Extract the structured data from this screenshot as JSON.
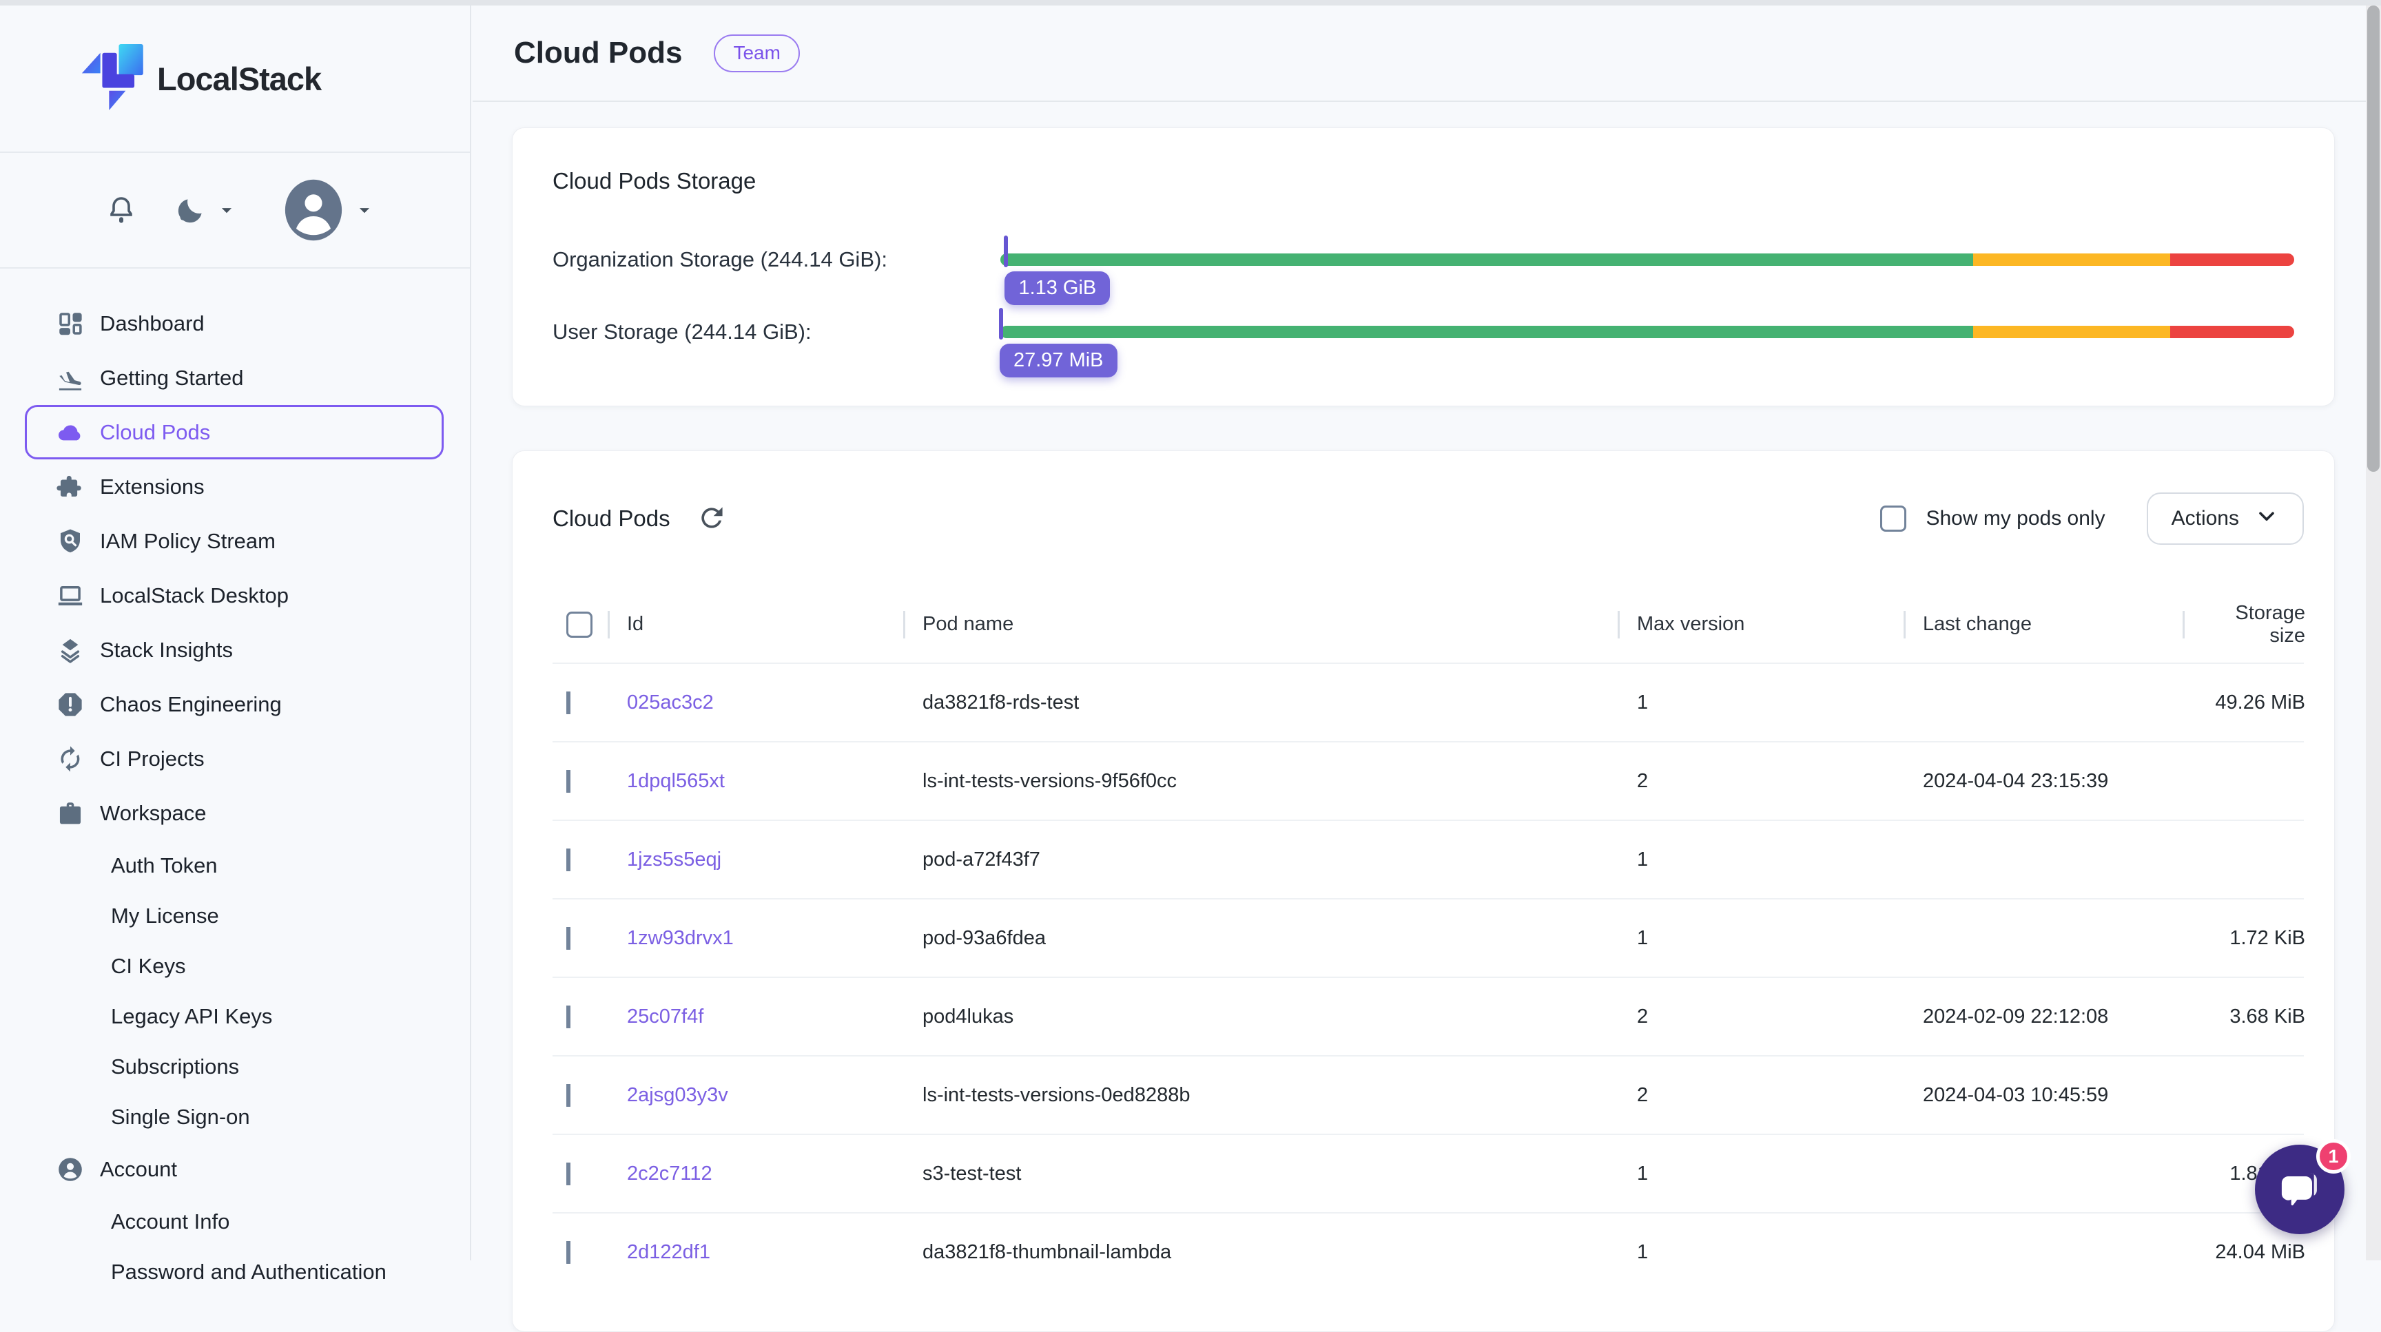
{
  "brand": {
    "name": "LocalStack"
  },
  "topbar": {
    "icons": [
      "notifications-bell",
      "theme-moon",
      "user-avatar"
    ]
  },
  "sidebar": {
    "items": [
      {
        "label": "Dashboard",
        "icon": "dashboard",
        "selected": false,
        "indent": false
      },
      {
        "label": "Getting Started",
        "icon": "plane-landing",
        "selected": false,
        "indent": false
      },
      {
        "label": "Cloud Pods",
        "icon": "cloud",
        "selected": true,
        "indent": false
      },
      {
        "label": "Extensions",
        "icon": "puzzle",
        "selected": false,
        "indent": false
      },
      {
        "label": "IAM Policy Stream",
        "icon": "shield-search",
        "selected": false,
        "indent": false
      },
      {
        "label": "LocalStack Desktop",
        "icon": "laptop",
        "selected": false,
        "indent": false
      },
      {
        "label": "Stack Insights",
        "icon": "layers",
        "selected": false,
        "indent": false
      },
      {
        "label": "Chaos Engineering",
        "icon": "alert-octagon",
        "selected": false,
        "indent": false
      },
      {
        "label": "CI Projects",
        "icon": "sync",
        "selected": false,
        "indent": false
      },
      {
        "label": "Workspace",
        "icon": "briefcase",
        "selected": false,
        "indent": false
      },
      {
        "label": "Auth Token",
        "icon": null,
        "selected": false,
        "indent": true
      },
      {
        "label": "My License",
        "icon": null,
        "selected": false,
        "indent": true
      },
      {
        "label": "CI Keys",
        "icon": null,
        "selected": false,
        "indent": true
      },
      {
        "label": "Legacy API Keys",
        "icon": null,
        "selected": false,
        "indent": true
      },
      {
        "label": "Subscriptions",
        "icon": null,
        "selected": false,
        "indent": true
      },
      {
        "label": "Single Sign-on",
        "icon": null,
        "selected": false,
        "indent": true
      },
      {
        "label": "Account",
        "icon": "person-circle",
        "selected": false,
        "indent": false
      },
      {
        "label": "Account Info",
        "icon": null,
        "selected": false,
        "indent": true
      },
      {
        "label": "Password and Authentication",
        "icon": null,
        "selected": false,
        "indent": true
      }
    ]
  },
  "header": {
    "title": "Cloud Pods",
    "badge": "Team"
  },
  "storage": {
    "title": "Cloud Pods Storage",
    "segments": [
      {
        "color": "#45b272",
        "pct": 75.2
      },
      {
        "color": "#fcb724",
        "pct": 15.2
      },
      {
        "color": "#ec4340",
        "pct": 9.6
      }
    ],
    "rows": [
      {
        "label": "Organization Storage (244.14 GiB):",
        "badge": "1.13 GiB",
        "marker_pct": 0.45
      },
      {
        "label": "User Storage (244.14 GiB):",
        "badge": "27.97 MiB",
        "marker_pct": 0.05
      }
    ]
  },
  "pods": {
    "title": "Cloud Pods",
    "filter_label": "Show my pods only",
    "actions_label": "Actions",
    "columns": [
      "Id",
      "Pod name",
      "Max version",
      "Last change",
      "Storage size"
    ],
    "rows": [
      {
        "id": "025ac3c2",
        "pod_name": "da3821f8-rds-test",
        "max_version": "1",
        "last_change": "",
        "storage_size": "49.26 MiB"
      },
      {
        "id": "1dpql565xt",
        "pod_name": "ls-int-tests-versions-9f56f0cc",
        "max_version": "2",
        "last_change": "2024-04-04 23:15:39",
        "storage_size": ""
      },
      {
        "id": "1jzs5s5eqj",
        "pod_name": "pod-a72f43f7",
        "max_version": "1",
        "last_change": "",
        "storage_size": ""
      },
      {
        "id": "1zw93drvx1",
        "pod_name": "pod-93a6fdea",
        "max_version": "1",
        "last_change": "",
        "storage_size": "1.72 KiB"
      },
      {
        "id": "25c07f4f",
        "pod_name": "pod4lukas",
        "max_version": "2",
        "last_change": "2024-02-09 22:12:08",
        "storage_size": "3.68 KiB"
      },
      {
        "id": "2ajsg03y3v",
        "pod_name": "ls-int-tests-versions-0ed8288b",
        "max_version": "2",
        "last_change": "2024-04-03 10:45:59",
        "storage_size": ""
      },
      {
        "id": "2c2c7112",
        "pod_name": "s3-test-test",
        "max_version": "1",
        "last_change": "",
        "storage_size": "1.81 KiB"
      },
      {
        "id": "2d122df1",
        "pod_name": "da3821f8-thumbnail-lambda",
        "max_version": "1",
        "last_change": "",
        "storage_size": "24.04 MiB"
      }
    ]
  },
  "chat": {
    "unread_count": "1"
  },
  "colors": {
    "accent_purple": "#7d5bf0",
    "link_purple": "#7b5fe3",
    "badge_purple": "#7164d8",
    "bar_green": "#45b272",
    "bar_yellow": "#fcb724",
    "bar_red": "#ec4340",
    "chat_indigo": "#3d2b84",
    "chat_badge_pink": "#ef4070"
  }
}
